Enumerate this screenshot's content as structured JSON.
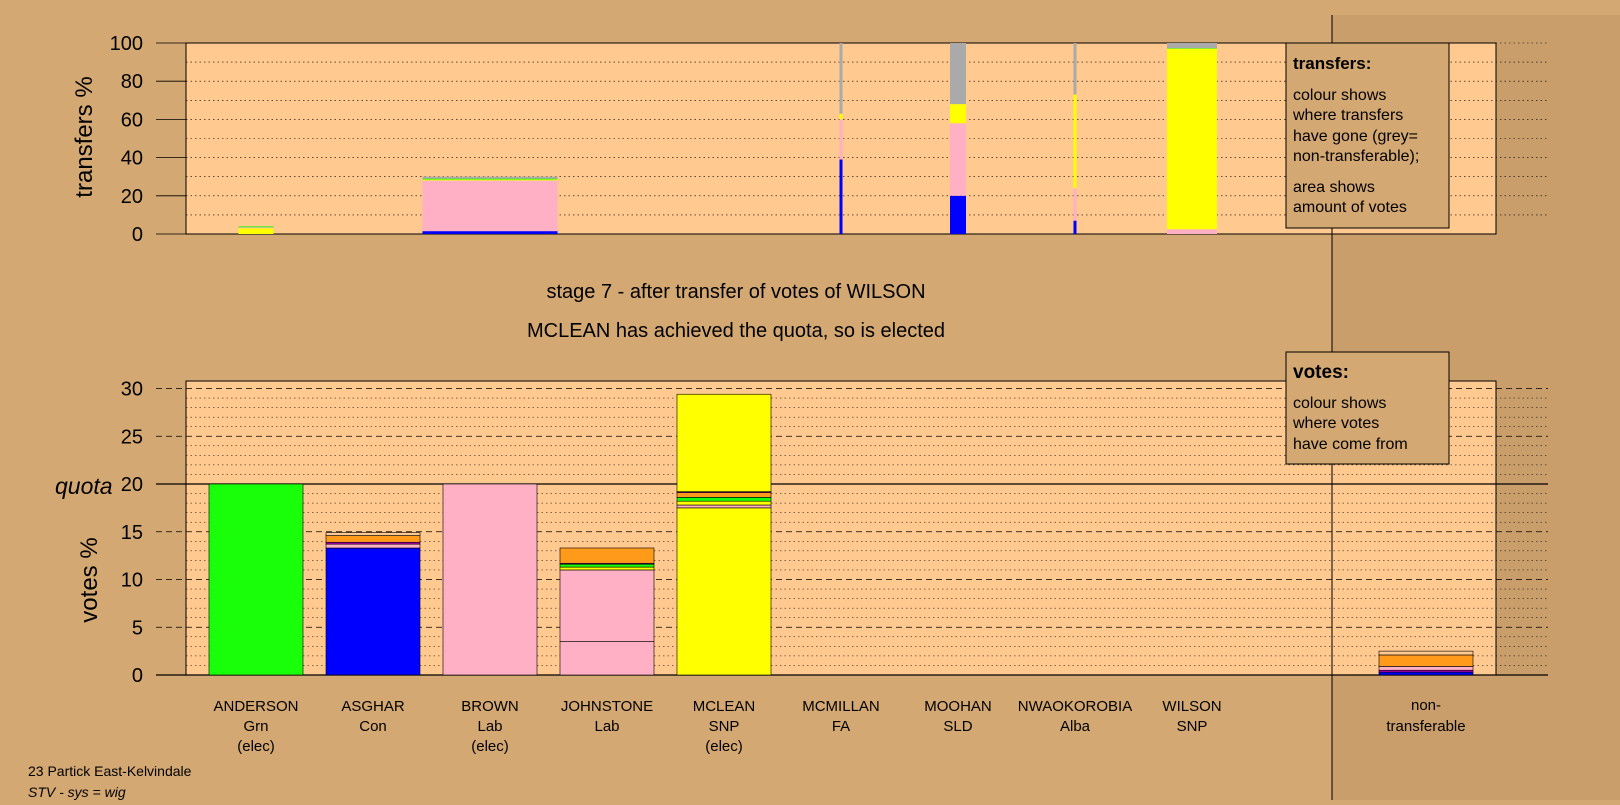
{
  "colors": {
    "background": "#d4a873",
    "plot_bg": "#ffc990",
    "Grn": "#19ff0a",
    "Con": "#0000ff",
    "Lab": "#ffb0c4",
    "SNP": "#ffff00",
    "Alba": "#ff9a1a",
    "nontransferable": "#aaaaaa",
    "purple": "#b000b0"
  },
  "headline": {
    "stage": "stage 7 - after transfer of votes of WILSON",
    "result": "MCLEAN has achieved the quota, so is elected"
  },
  "footer": {
    "ward": "23 Partick East-Kelvindale",
    "system": "STV - sys = wig"
  },
  "legend_transfers": {
    "title": "transfers:",
    "line1": "colour shows",
    "line2": "where transfers",
    "line3": "have gone (grey=",
    "line4": "non-transferable);",
    "line5": "area shows",
    "line6": "amount of votes"
  },
  "legend_votes": {
    "title": "votes:",
    "line1": "colour shows",
    "line2": "where votes",
    "line3": "have come from"
  },
  "chart_data": [
    {
      "type": "bar",
      "ylabel": "transfers %",
      "ylim": [
        0,
        100
      ],
      "yticks": [
        "0",
        "20",
        "40",
        "60",
        "80",
        "100"
      ],
      "bars": [
        {
          "category": "ANDERSON",
          "width_pct": 3.5,
          "segments": [
            {
              "party": "SNP",
              "value": 3.0,
              "color": "#ffff00"
            },
            {
              "party": "Lab",
              "value": 0.5,
              "color": "#ffb0c4"
            },
            {
              "party": "Grn",
              "value": 0.5,
              "color": "#19ff0a"
            }
          ]
        },
        {
          "category": "BROWN",
          "width_pct": 13.5,
          "segments": [
            {
              "party": "Con",
              "value": 1.5,
              "color": "#0000ff"
            },
            {
              "party": "Lab",
              "value": 26.5,
              "color": "#ffb0c4"
            },
            {
              "party": "SNP",
              "value": 0.5,
              "color": "#ffff00"
            },
            {
              "party": "Grn",
              "value": 0.5,
              "color": "#19ff0a"
            },
            {
              "party": "non-transferable",
              "value": 1.0,
              "color": "#aaaaaa"
            }
          ]
        },
        {
          "category": "MCMILLAN",
          "width_pct": 0.3,
          "segments": [
            {
              "party": "Con",
              "value": 39,
              "color": "#0000ff"
            },
            {
              "party": "Lab",
              "value": 21,
              "color": "#ffb0c4"
            },
            {
              "party": "SNP",
              "value": 3,
              "color": "#ffff00"
            },
            {
              "party": "non-transferable",
              "value": 37,
              "color": "#aaaaaa"
            }
          ]
        },
        {
          "category": "MOOHAN",
          "width_pct": 1.6,
          "segments": [
            {
              "party": "Con",
              "value": 20,
              "color": "#0000ff"
            },
            {
              "party": "Lab",
              "value": 38,
              "color": "#ffb0c4"
            },
            {
              "party": "SNP",
              "value": 10,
              "color": "#ffff00"
            },
            {
              "party": "non-transferable",
              "value": 32,
              "color": "#aaaaaa"
            }
          ]
        },
        {
          "category": "NWAOKOROBIA",
          "width_pct": 0.3,
          "segments": [
            {
              "party": "Con",
              "value": 7,
              "color": "#0000ff"
            },
            {
              "party": "Lab",
              "value": 17,
              "color": "#ffb0c4"
            },
            {
              "party": "SNP",
              "value": 49,
              "color": "#ffff00"
            },
            {
              "party": "non-transferable",
              "value": 27,
              "color": "#aaaaaa"
            }
          ]
        },
        {
          "category": "WILSON",
          "width_pct": 5.0,
          "segments": [
            {
              "party": "Lab",
              "value": 2.5,
              "color": "#ffb0c4"
            },
            {
              "party": "SNP",
              "value": 94.5,
              "color": "#ffff00"
            },
            {
              "party": "Grn",
              "value": 0.3,
              "color": "#19ff0a"
            },
            {
              "party": "non-transferable",
              "value": 2.7,
              "color": "#aaaaaa"
            }
          ]
        }
      ]
    },
    {
      "type": "bar",
      "ylabel": "votes %",
      "ylim": [
        0,
        30.8
      ],
      "yticks": [
        "0",
        "5",
        "10",
        "15",
        "20",
        "25",
        "30"
      ],
      "quota": 20,
      "quota_label": "quota",
      "candidates": [
        {
          "name": "ANDERSON",
          "party": "Grn",
          "status": "(elec)",
          "segments": [
            {
              "value": 20.0,
              "color": "#19ff0a"
            }
          ]
        },
        {
          "name": "ASGHAR",
          "party": "Con",
          "status": "",
          "segments": [
            {
              "value": 13.3,
              "color": "#0000ff"
            },
            {
              "value": 0.4,
              "color": "#ffb0c4"
            },
            {
              "value": 0.2,
              "color": "#b000b0"
            },
            {
              "value": 0.7,
              "color": "#ff9a1a"
            },
            {
              "value": 0.3,
              "color": "#ffc990"
            }
          ]
        },
        {
          "name": "BROWN",
          "party": "Lab",
          "status": "(elec)",
          "segments": [
            {
              "value": 20.0,
              "color": "#ffb0c4"
            }
          ]
        },
        {
          "name": "JOHNSTONE",
          "party": "Lab",
          "status": "",
          "segments": [
            {
              "value": 3.5,
              "color": "#ffb0c4"
            },
            {
              "value": 7.5,
              "color": "#ffb0c4"
            },
            {
              "value": 0.3,
              "color": "#ffff00"
            },
            {
              "value": 0.3,
              "color": "#19ff0a"
            },
            {
              "value": 0.1,
              "color": "#b000b0"
            },
            {
              "value": 1.6,
              "color": "#ff9a1a"
            }
          ]
        },
        {
          "name": "MCLEAN",
          "party": "SNP",
          "status": "(elec)",
          "segments": [
            {
              "value": 17.5,
              "color": "#ffff00"
            },
            {
              "value": 0.3,
              "color": "#ffb0c4"
            },
            {
              "value": 0.4,
              "color": "#ffff00"
            },
            {
              "value": 0.4,
              "color": "#19ff0a"
            },
            {
              "value": 0.5,
              "color": "#ff9a1a"
            },
            {
              "value": 0.1,
              "color": "#b000b0"
            },
            {
              "value": 10.2,
              "color": "#ffff00"
            }
          ]
        },
        {
          "name": "MCMILLAN",
          "party": "FA",
          "status": "",
          "segments": []
        },
        {
          "name": "MOOHAN",
          "party": "SLD",
          "status": "",
          "segments": []
        },
        {
          "name": "NWAOKOROBIA",
          "party": "Alba",
          "status": "",
          "segments": []
        },
        {
          "name": "WILSON",
          "party": "SNP",
          "status": "",
          "segments": []
        }
      ],
      "nontransferable": {
        "label_line1": "non-",
        "label_line2": "transferable",
        "segments": [
          {
            "value": 0.3,
            "color": "#0000ff"
          },
          {
            "value": 0.2,
            "color": "#b000b0"
          },
          {
            "value": 0.4,
            "color": "#ffb0c4"
          },
          {
            "value": 1.2,
            "color": "#ff9a1a"
          },
          {
            "value": 0.4,
            "color": "#ffc990"
          }
        ]
      }
    }
  ]
}
